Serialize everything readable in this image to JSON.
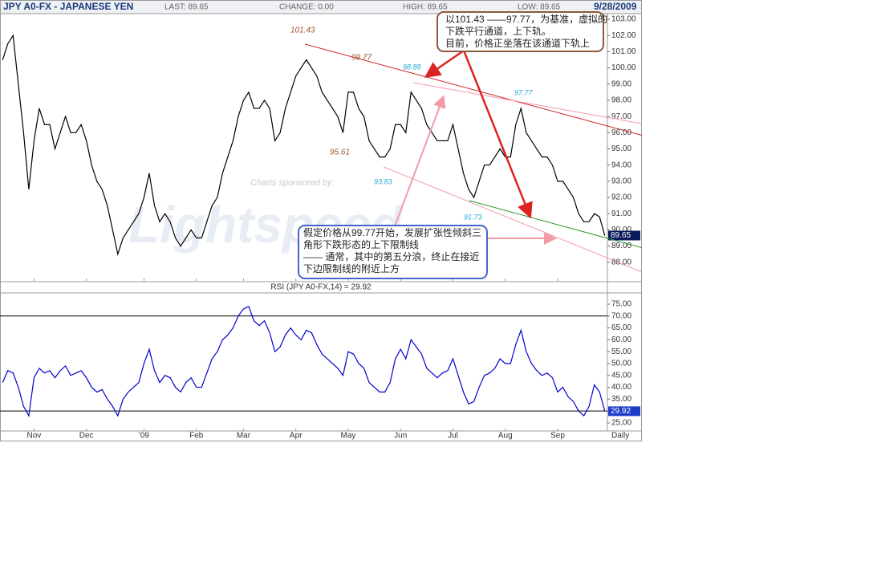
{
  "header": {
    "title": "JPY A0-FX - JAPANESE YEN",
    "last": "LAST: 89.65",
    "change": "CHANGE: 0.00",
    "high": "HIGH: 89.65",
    "low": "LOW: 89.65",
    "date": "9/28/2009"
  },
  "annotations": {
    "p1": "101.43",
    "p2": "99.77",
    "p3": "98.88",
    "p4": "97.77",
    "p5": "95.61",
    "p6": "93.83",
    "p7": "91.73"
  },
  "notes": {
    "channel": [
      "以101.43 ——97.77，为基准，虚拟的",
      "下跌平行通道，上下轨。",
      "目前，价格正坐落在该通道下轨上"
    ],
    "triangle": [
      "假定价格从99.77开始，发展扩张性倾斜三",
      "角形下跌形态的上下限制线",
      "—— 通常，其中的第五分浪，终止在接近",
      "下边限制线的附近上方"
    ]
  },
  "watermark": {
    "sponsor": "Charts sponsored by:",
    "brand": "Lightspeed"
  },
  "chart_data": [
    {
      "type": "line",
      "color": "#000000",
      "categories": [
        null,
        null,
        null,
        null,
        null,
        null,
        "Nov",
        null,
        null,
        null,
        null,
        null,
        null,
        null,
        null,
        null,
        "Dec",
        null,
        null,
        null,
        null,
        null,
        null,
        null,
        null,
        null,
        null,
        "'09",
        null,
        null,
        null,
        null,
        null,
        null,
        null,
        null,
        null,
        "Feb",
        null,
        null,
        null,
        null,
        null,
        null,
        null,
        null,
        "Mar",
        null,
        null,
        null,
        null,
        null,
        null,
        null,
        null,
        null,
        "Apr",
        null,
        null,
        null,
        null,
        null,
        null,
        null,
        null,
        null,
        "May",
        null,
        null,
        null,
        null,
        null,
        null,
        null,
        null,
        null,
        "Jun",
        null,
        null,
        null,
        null,
        null,
        null,
        null,
        null,
        null,
        "Jul",
        null,
        null,
        null,
        null,
        null,
        null,
        null,
        null,
        null,
        "Aug",
        null,
        null,
        null,
        null,
        null,
        null,
        null,
        null,
        null,
        "Sep",
        null,
        null,
        null,
        null,
        null,
        null,
        null,
        null,
        null
      ],
      "values": [
        100.5,
        101.5,
        102,
        99,
        96,
        92.5,
        95.5,
        97.5,
        96.5,
        96.5,
        95,
        96,
        97,
        96,
        96,
        96.5,
        95.5,
        94,
        93,
        92.5,
        91.5,
        90,
        88.5,
        89.5,
        90,
        90.5,
        91,
        92,
        93.5,
        91.5,
        90.5,
        91,
        90.5,
        89.5,
        89,
        89.5,
        90,
        89.5,
        89.5,
        90.5,
        91.5,
        92,
        93.5,
        94.5,
        95.5,
        97,
        98,
        98.5,
        97.5,
        97.5,
        98,
        97.5,
        95.5,
        96,
        97.5,
        98.5,
        99.5,
        100,
        100.5,
        100,
        99.5,
        98.5,
        98,
        97.5,
        97,
        96,
        98.5,
        98.5,
        97.5,
        97,
        95.5,
        95,
        94.5,
        94.5,
        95,
        96.5,
        96.5,
        96,
        98.5,
        98,
        97.5,
        96.5,
        96,
        95.5,
        95.5,
        95.5,
        96.5,
        95,
        93.5,
        92.5,
        92,
        93,
        94,
        94,
        94.5,
        95,
        94.5,
        94.5,
        96.5,
        97.5,
        96,
        95.5,
        95,
        94.5,
        94.5,
        94,
        93,
        93,
        92.5,
        92,
        91,
        90.5,
        90.5,
        91,
        90.8,
        89.65
      ],
      "ylim": [
        86.85,
        103.35
      ],
      "yticks": [
        {
          "value": 88,
          "label": "88.00"
        },
        {
          "value": 89,
          "label": "89.00"
        },
        {
          "value": 90,
          "label": "90.00"
        },
        {
          "value": 91,
          "label": "91.00"
        },
        {
          "value": 92,
          "label": "92.00"
        },
        {
          "value": 93,
          "label": "93.00"
        },
        {
          "value": 94,
          "label": "94.00"
        },
        {
          "value": 95,
          "label": "95.00"
        },
        {
          "value": 96,
          "label": "96.00"
        },
        {
          "value": 97,
          "label": "97.00"
        },
        {
          "value": 98,
          "label": "98.00"
        },
        {
          "value": 99,
          "label": "99.00"
        },
        {
          "value": 100,
          "label": "100.00"
        },
        {
          "value": 101,
          "label": "101.00"
        },
        {
          "value": 102,
          "label": "102.00"
        },
        {
          "value": 103,
          "label": "103.00"
        }
      ]
    },
    {
      "type": "line",
      "title": "RSI (JPY A0-FX,14) = 29.92",
      "color": "#0000cc",
      "interval": "Daily",
      "categories": [
        null,
        null,
        null,
        null,
        null,
        null,
        "Nov",
        null,
        null,
        null,
        null,
        null,
        null,
        null,
        null,
        null,
        "Dec",
        null,
        null,
        null,
        null,
        null,
        null,
        null,
        null,
        null,
        null,
        "'09",
        null,
        null,
        null,
        null,
        null,
        null,
        null,
        null,
        null,
        "Feb",
        null,
        null,
        null,
        null,
        null,
        null,
        null,
        null,
        "Mar",
        null,
        null,
        null,
        null,
        null,
        null,
        null,
        null,
        null,
        "Apr",
        null,
        null,
        null,
        null,
        null,
        null,
        null,
        null,
        null,
        "May",
        null,
        null,
        null,
        null,
        null,
        null,
        null,
        null,
        null,
        "Jun",
        null,
        null,
        null,
        null,
        null,
        null,
        null,
        null,
        null,
        "Jul",
        null,
        null,
        null,
        null,
        null,
        null,
        null,
        null,
        null,
        "Aug",
        null,
        null,
        null,
        null,
        null,
        null,
        null,
        null,
        null,
        "Sep",
        null,
        null,
        null,
        null,
        null,
        null,
        null,
        null,
        null
      ],
      "values": [
        42,
        47,
        46,
        40,
        32,
        28,
        44,
        48,
        46,
        47,
        44,
        47,
        49,
        45,
        46,
        47,
        44,
        40,
        38,
        39,
        35,
        32,
        28,
        35,
        38,
        40,
        42,
        50,
        56,
        47,
        42,
        45,
        44,
        40,
        38,
        42,
        44,
        40,
        40,
        46,
        52,
        55,
        60,
        62,
        65,
        70,
        73,
        74,
        68,
        66,
        68,
        63,
        55,
        57,
        62,
        65,
        62,
        60,
        64,
        63,
        58,
        54,
        52,
        50,
        48,
        45,
        55,
        54,
        50,
        48,
        42,
        40,
        38,
        38,
        42,
        52,
        56,
        52,
        60,
        57,
        54,
        48,
        46,
        44,
        46,
        47,
        52,
        45,
        38,
        33,
        34,
        40,
        45,
        46,
        48,
        52,
        50,
        50,
        58,
        64,
        55,
        50,
        47,
        45,
        46,
        44,
        38,
        40,
        36,
        34,
        30,
        28,
        32,
        41,
        38,
        29.92
      ],
      "ylim": [
        21.6,
        79.4
      ],
      "yticks": [
        {
          "value": 25,
          "label": "25.00"
        },
        {
          "value": 30,
          "label": "30.00"
        },
        {
          "value": 35,
          "label": "35.00"
        },
        {
          "value": 40,
          "label": "40.00"
        },
        {
          "value": 45,
          "label": "45.00"
        },
        {
          "value": 50,
          "label": "50.00"
        },
        {
          "value": 55,
          "label": "55.00"
        },
        {
          "value": 60,
          "label": "60.00"
        },
        {
          "value": 65,
          "label": "65.00"
        },
        {
          "value": 70,
          "label": "70.00"
        },
        {
          "value": 75,
          "label": "75.00"
        }
      ],
      "hlines": [
        70,
        30
      ]
    }
  ]
}
